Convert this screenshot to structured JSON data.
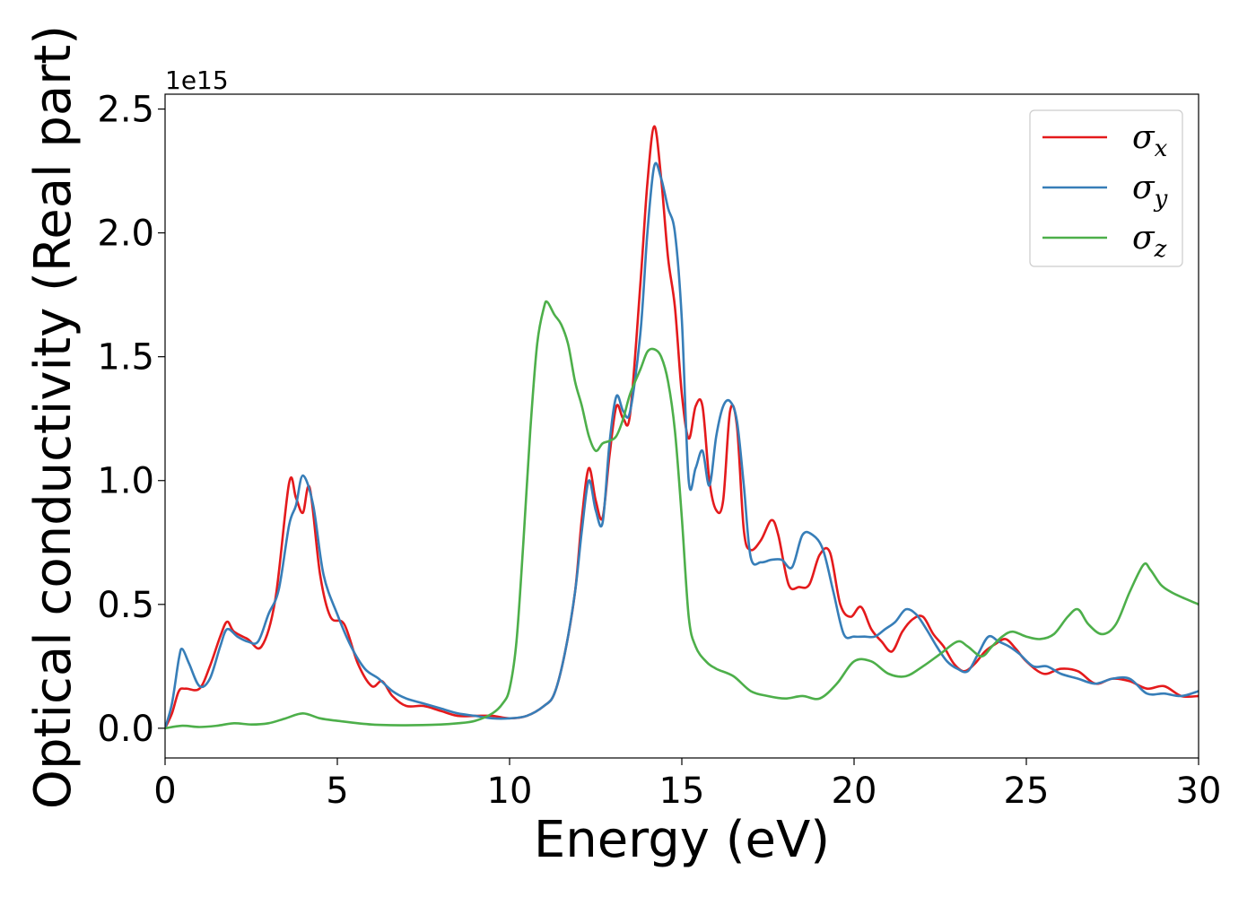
{
  "chart_data": {
    "type": "line",
    "xlabel": "Energy (eV)",
    "ylabel": "Optical conductivity (Real part)",
    "y_offset_label": "1e15",
    "xlim": [
      0,
      30
    ],
    "ylim": [
      -0.12,
      2.56
    ],
    "x_ticks": [
      0,
      5,
      10,
      15,
      20,
      25,
      30
    ],
    "x_tick_labels": [
      "0",
      "5",
      "10",
      "15",
      "20",
      "25",
      "30"
    ],
    "y_ticks": [
      0,
      0.5,
      1.0,
      1.5,
      2.0,
      2.5
    ],
    "y_tick_labels": [
      "0.0",
      "0.5",
      "1.0",
      "1.5",
      "2.0",
      "2.5"
    ],
    "grid": false,
    "legend_position": "top-right",
    "series": [
      {
        "name": "σx",
        "legend_base": "σ",
        "legend_sub": "x",
        "color": "#e41a1c",
        "x": [
          0,
          0.2,
          0.4,
          0.6,
          1.0,
          1.3,
          1.6,
          1.8,
          2.0,
          2.4,
          2.8,
          3.2,
          3.6,
          3.8,
          4.0,
          4.2,
          4.5,
          4.8,
          5.2,
          5.6,
          6.0,
          6.3,
          6.6,
          7.0,
          7.5,
          8.0,
          8.5,
          9.0,
          9.5,
          10.0,
          10.5,
          11.0,
          11.3,
          11.6,
          11.9,
          12.1,
          12.3,
          12.5,
          12.7,
          12.9,
          13.1,
          13.3,
          13.5,
          13.8,
          14.0,
          14.2,
          14.4,
          14.6,
          14.8,
          15.0,
          15.2,
          15.4,
          15.6,
          15.8,
          16.0,
          16.2,
          16.4,
          16.6,
          16.8,
          17.0,
          17.3,
          17.6,
          17.8,
          18.1,
          18.4,
          18.7,
          19.0,
          19.3,
          19.6,
          19.9,
          20.2,
          20.5,
          20.8,
          21.1,
          21.4,
          21.7,
          22.0,
          22.3,
          22.6,
          22.9,
          23.2,
          23.5,
          23.8,
          24.1,
          24.4,
          24.7,
          25.0,
          25.5,
          26.0,
          26.5,
          27.0,
          27.5,
          28.0,
          28.5,
          29.0,
          29.5,
          30.0
        ],
        "y": [
          0.0,
          0.06,
          0.15,
          0.16,
          0.16,
          0.25,
          0.37,
          0.43,
          0.39,
          0.36,
          0.33,
          0.52,
          0.99,
          0.93,
          0.87,
          0.97,
          0.62,
          0.45,
          0.42,
          0.26,
          0.17,
          0.19,
          0.13,
          0.09,
          0.09,
          0.07,
          0.05,
          0.05,
          0.05,
          0.04,
          0.05,
          0.09,
          0.14,
          0.3,
          0.55,
          0.85,
          1.05,
          0.92,
          0.85,
          1.1,
          1.3,
          1.25,
          1.27,
          1.8,
          2.2,
          2.43,
          2.22,
          1.9,
          1.7,
          1.35,
          1.17,
          1.3,
          1.3,
          1.0,
          0.88,
          0.92,
          1.28,
          1.22,
          0.8,
          0.72,
          0.76,
          0.84,
          0.78,
          0.58,
          0.57,
          0.58,
          0.7,
          0.71,
          0.5,
          0.45,
          0.49,
          0.4,
          0.35,
          0.31,
          0.39,
          0.44,
          0.45,
          0.38,
          0.33,
          0.26,
          0.23,
          0.26,
          0.31,
          0.34,
          0.36,
          0.32,
          0.27,
          0.22,
          0.24,
          0.23,
          0.18,
          0.2,
          0.19,
          0.16,
          0.17,
          0.13,
          0.13
        ]
      },
      {
        "name": "σy",
        "legend_base": "σ",
        "legend_sub": "y",
        "color": "#377eb8",
        "x": [
          0,
          0.2,
          0.4,
          0.5,
          0.7,
          1.0,
          1.3,
          1.6,
          1.8,
          2.1,
          2.4,
          2.7,
          3.0,
          3.3,
          3.6,
          3.8,
          4.0,
          4.3,
          4.6,
          5.0,
          5.4,
          5.8,
          6.2,
          6.6,
          7.0,
          7.5,
          8.0,
          8.5,
          9.0,
          9.5,
          10.0,
          10.5,
          11.0,
          11.3,
          11.6,
          11.9,
          12.1,
          12.3,
          12.5,
          12.7,
          12.9,
          13.1,
          13.3,
          13.5,
          13.8,
          14.0,
          14.2,
          14.4,
          14.6,
          14.8,
          15.0,
          15.2,
          15.4,
          15.6,
          15.8,
          16.0,
          16.2,
          16.4,
          16.6,
          16.8,
          17.0,
          17.3,
          17.6,
          17.9,
          18.2,
          18.5,
          18.8,
          19.1,
          19.4,
          19.7,
          20.0,
          20.3,
          20.6,
          20.9,
          21.2,
          21.5,
          21.8,
          22.1,
          22.4,
          22.7,
          23.0,
          23.3,
          23.6,
          23.9,
          24.2,
          24.5,
          24.8,
          25.2,
          25.6,
          26.0,
          26.5,
          27.0,
          27.5,
          28.0,
          28.5,
          29.0,
          29.5,
          30.0
        ],
        "y": [
          0.0,
          0.1,
          0.28,
          0.32,
          0.26,
          0.17,
          0.2,
          0.33,
          0.4,
          0.37,
          0.35,
          0.35,
          0.46,
          0.56,
          0.82,
          0.9,
          1.02,
          0.9,
          0.62,
          0.46,
          0.33,
          0.24,
          0.2,
          0.15,
          0.12,
          0.1,
          0.08,
          0.06,
          0.05,
          0.04,
          0.04,
          0.05,
          0.09,
          0.14,
          0.3,
          0.55,
          0.8,
          1.0,
          0.88,
          0.83,
          1.15,
          1.34,
          1.28,
          1.28,
          1.6,
          2.0,
          2.27,
          2.22,
          2.1,
          2.0,
          1.65,
          1.0,
          1.05,
          1.12,
          0.98,
          1.18,
          1.3,
          1.32,
          1.24,
          0.98,
          0.69,
          0.67,
          0.68,
          0.68,
          0.65,
          0.78,
          0.78,
          0.72,
          0.55,
          0.38,
          0.37,
          0.37,
          0.37,
          0.4,
          0.43,
          0.48,
          0.46,
          0.4,
          0.33,
          0.27,
          0.24,
          0.23,
          0.3,
          0.37,
          0.35,
          0.33,
          0.3,
          0.25,
          0.25,
          0.22,
          0.2,
          0.18,
          0.2,
          0.2,
          0.14,
          0.14,
          0.13,
          0.15
        ]
      },
      {
        "name": "σz",
        "legend_base": "σ",
        "legend_sub": "z",
        "color": "#4daf4a",
        "x": [
          0,
          0.5,
          1.0,
          1.5,
          2.0,
          2.5,
          3.0,
          3.5,
          4.0,
          4.5,
          5.0,
          6.0,
          7.0,
          8.0,
          8.5,
          9.0,
          9.5,
          9.8,
          10.0,
          10.2,
          10.4,
          10.6,
          10.8,
          11.0,
          11.1,
          11.3,
          11.5,
          11.7,
          11.9,
          12.1,
          12.3,
          12.5,
          12.7,
          12.9,
          13.1,
          13.3,
          13.5,
          13.8,
          14.0,
          14.2,
          14.4,
          14.6,
          14.8,
          15.0,
          15.2,
          15.4,
          15.7,
          16.0,
          16.5,
          17.0,
          17.5,
          18.0,
          18.5,
          19.0,
          19.5,
          20.0,
          20.5,
          21.0,
          21.5,
          22.0,
          22.5,
          23.0,
          23.3,
          23.7,
          24.0,
          24.3,
          24.6,
          25.0,
          25.4,
          25.8,
          26.2,
          26.5,
          26.8,
          27.2,
          27.6,
          28.0,
          28.4,
          28.6,
          28.9,
          29.2,
          29.5,
          30.0
        ],
        "y": [
          0.0,
          0.01,
          0.005,
          0.01,
          0.02,
          0.015,
          0.02,
          0.04,
          0.06,
          0.04,
          0.03,
          0.015,
          0.012,
          0.015,
          0.02,
          0.03,
          0.06,
          0.1,
          0.16,
          0.35,
          0.75,
          1.2,
          1.55,
          1.7,
          1.72,
          1.67,
          1.63,
          1.55,
          1.4,
          1.3,
          1.18,
          1.12,
          1.15,
          1.16,
          1.18,
          1.25,
          1.35,
          1.45,
          1.52,
          1.53,
          1.5,
          1.4,
          1.2,
          0.85,
          0.45,
          0.33,
          0.27,
          0.24,
          0.21,
          0.15,
          0.13,
          0.12,
          0.13,
          0.12,
          0.18,
          0.27,
          0.27,
          0.22,
          0.21,
          0.25,
          0.3,
          0.35,
          0.33,
          0.29,
          0.33,
          0.37,
          0.39,
          0.37,
          0.36,
          0.38,
          0.45,
          0.48,
          0.42,
          0.38,
          0.42,
          0.55,
          0.66,
          0.64,
          0.58,
          0.55,
          0.53,
          0.5
        ]
      }
    ]
  }
}
